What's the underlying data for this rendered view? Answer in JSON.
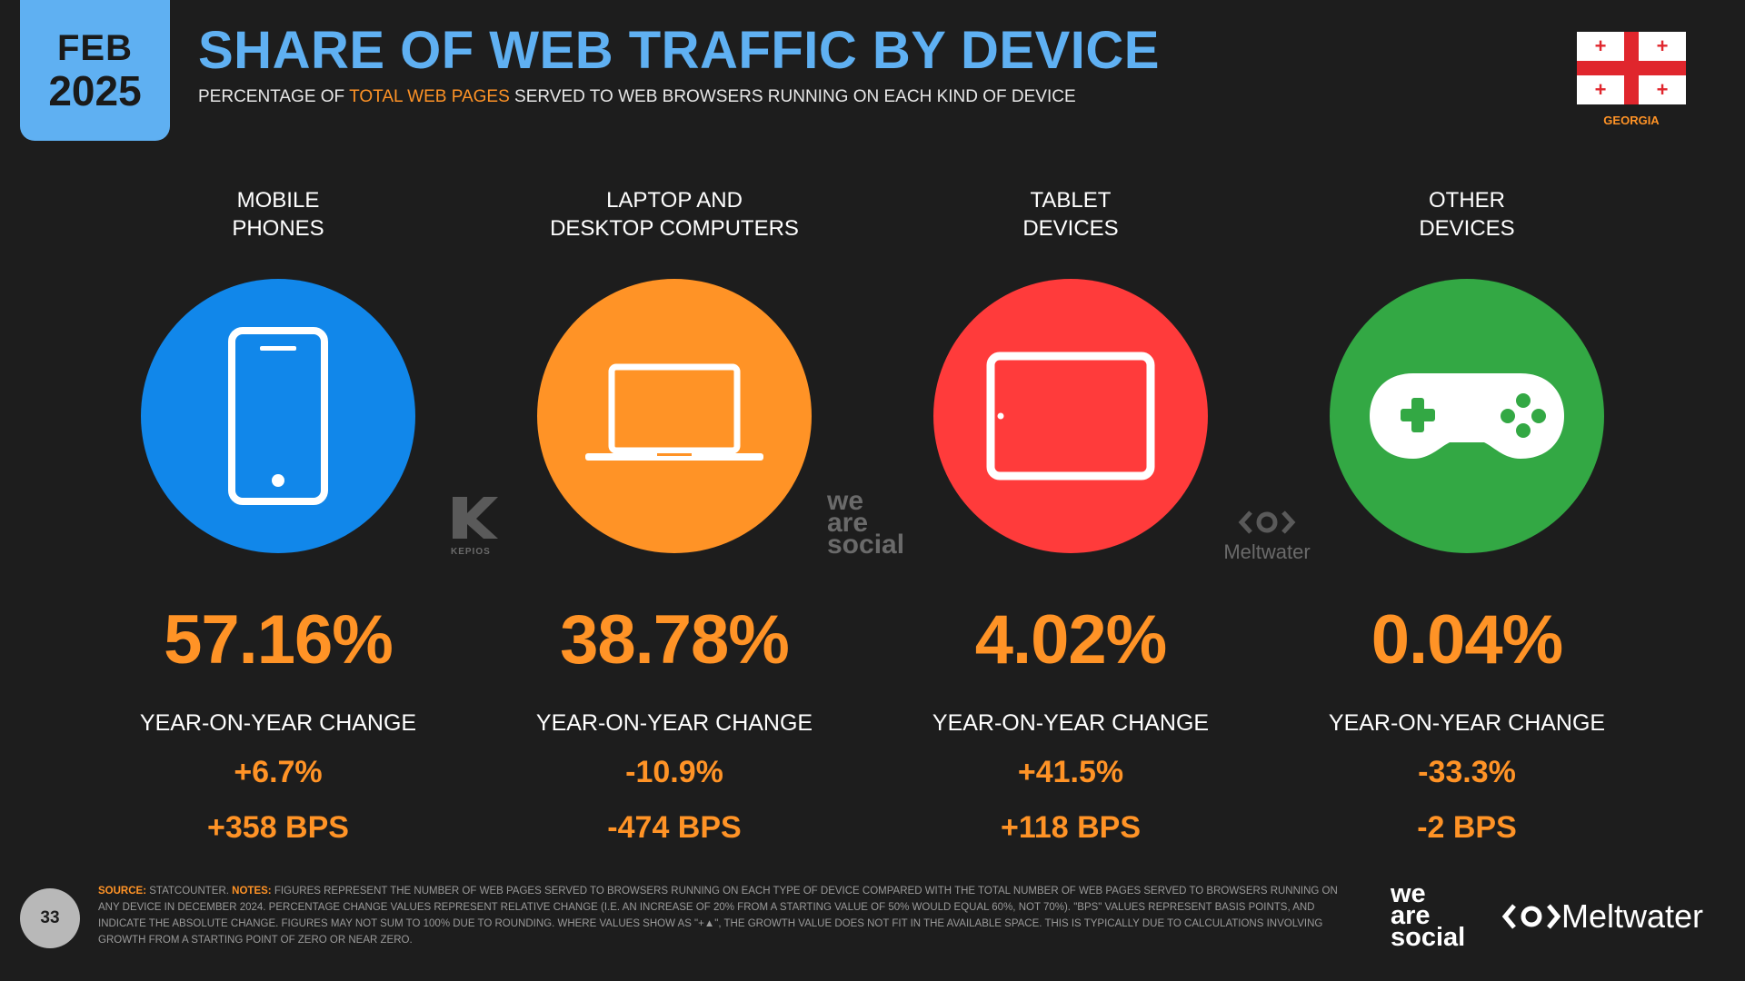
{
  "header": {
    "date_month": "FEB",
    "date_year": "2025",
    "title": "SHARE OF WEB TRAFFIC BY DEVICE",
    "subtitle_pre": "PERCENTAGE OF ",
    "subtitle_highlight": "TOTAL WEB PAGES",
    "subtitle_post": " SERVED TO WEB BROWSERS RUNNING ON EACH KIND OF DEVICE",
    "country": "GEORGIA"
  },
  "colors": {
    "accent_blue": "#5fb0f2",
    "accent_orange": "#ff9326",
    "mobile": "#1187ea",
    "laptop": "#ff9326",
    "tablet": "#ff3b3b",
    "other": "#33a844",
    "flag_red": "#e0262d"
  },
  "devices": [
    {
      "label_line1": "MOBILE",
      "label_line2": "PHONES",
      "icon": "mobile-phone-icon",
      "share": "57.16%",
      "yoy_label": "YEAR-ON-YEAR CHANGE",
      "yoy_pct": "+6.7%",
      "yoy_bps": "+358 BPS"
    },
    {
      "label_line1": "LAPTOP AND",
      "label_line2": "DESKTOP COMPUTERS",
      "icon": "laptop-icon",
      "share": "38.78%",
      "yoy_label": "YEAR-ON-YEAR CHANGE",
      "yoy_pct": "-10.9%",
      "yoy_bps": "-474 BPS"
    },
    {
      "label_line1": "TABLET",
      "label_line2": "DEVICES",
      "icon": "tablet-icon",
      "share": "4.02%",
      "yoy_label": "YEAR-ON-YEAR CHANGE",
      "yoy_pct": "+41.5%",
      "yoy_bps": "+118 BPS"
    },
    {
      "label_line1": "OTHER",
      "label_line2": "DEVICES",
      "icon": "game-controller-icon",
      "share": "0.04%",
      "yoy_label": "YEAR-ON-YEAR CHANGE",
      "yoy_pct": "-33.3%",
      "yoy_bps": "-2 BPS"
    }
  ],
  "watermarks": {
    "kepios": "KEPIOS",
    "was_1": "we",
    "was_2": "are",
    "was_3": "social",
    "meltwater": "Meltwater"
  },
  "footer": {
    "page_number": "33",
    "source_key": "SOURCE:",
    "source_text": " STATCOUNTER. ",
    "notes_key": "NOTES:",
    "notes_text": " FIGURES REPRESENT THE NUMBER OF WEB PAGES SERVED TO BROWSERS RUNNING ON EACH TYPE OF DEVICE COMPARED WITH THE TOTAL NUMBER OF WEB PAGES SERVED TO BROWSERS RUNNING ON ANY DEVICE IN DECEMBER 2024. PERCENTAGE CHANGE VALUES REPRESENT RELATIVE CHANGE (I.E. AN INCREASE OF 20% FROM A STARTING VALUE OF 50% WOULD EQUAL 60%, NOT 70%). \"BPS\" VALUES REPRESENT BASIS POINTS, AND INDICATE THE ABSOLUTE CHANGE. FIGURES MAY NOT SUM TO 100% DUE TO ROUNDING. WHERE VALUES SHOW AS \"+▲\", THE GROWTH VALUE DOES NOT FIT IN THE AVAILABLE SPACE. THIS IS TYPICALLY DUE TO CALCULATIONS INVOLVING GROWTH FROM A STARTING POINT OF ZERO OR NEAR ZERO.",
    "brand_was_1": "we",
    "brand_was_2": "are",
    "brand_was_3": "social",
    "brand_meltwater": "Meltwater"
  }
}
